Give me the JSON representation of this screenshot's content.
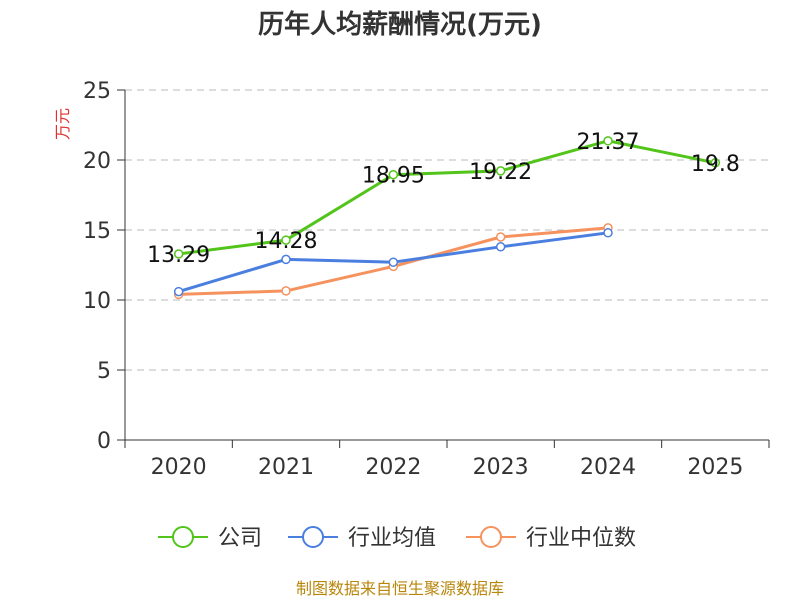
{
  "chart_data": {
    "type": "line",
    "title": "历年人均薪酬情况(万元)",
    "ylabel": "万元",
    "xlabel": "",
    "categories": [
      "2020",
      "2021",
      "2022",
      "2023",
      "2024",
      "2025"
    ],
    "ylim": [
      0,
      25
    ],
    "yticks": [
      "0",
      "5",
      "10",
      "15",
      "20",
      "25"
    ],
    "grid": true,
    "legend_position": "bottom",
    "series": [
      {
        "name": "公司",
        "color": "#52c41a",
        "values": [
          13.29,
          14.28,
          18.95,
          19.22,
          21.37,
          19.8
        ],
        "labels": [
          "13.29",
          "14.28",
          "18.95",
          "19.22",
          "21.37",
          "19.8"
        ]
      },
      {
        "name": "行业均值",
        "color": "#4a7fe0",
        "values": [
          10.6,
          12.9,
          12.7,
          13.8,
          14.8,
          null
        ]
      },
      {
        "name": "行业中位数",
        "color": "#f5925e",
        "values": [
          10.4,
          10.65,
          12.4,
          14.5,
          15.15,
          null
        ]
      }
    ],
    "source": "制图数据来自恒生聚源数据库"
  },
  "colors": {
    "ylabel": "#e03030",
    "source": "#b8860b",
    "axis": "#333333",
    "grid": "#bbbbbb"
  }
}
